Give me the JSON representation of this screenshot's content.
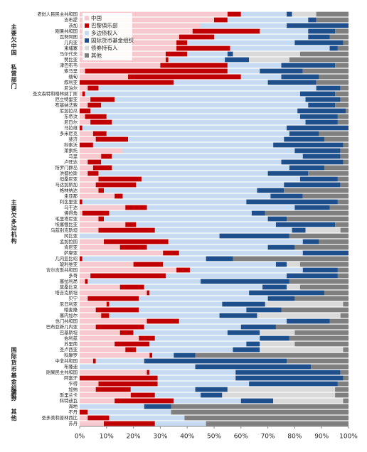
{
  "chart_data": {
    "type": "bar",
    "orientation": "horizontal",
    "stacked": true,
    "categories": [
      "老挝人民民主共和国",
      "吉布提",
      "汤加",
      "刚果共和国",
      "瓦努阿图",
      "几内亚",
      "柬埔寨",
      "马尔代夫",
      "赞比亚",
      "津巴布韦",
      "索马里",
      "缅甸",
      "叙利亚",
      "尼泊尔",
      "圣文森特和格林纳丁斯",
      "厄立特里亚",
      "布基纳法索",
      "尼加拉瓜",
      "东帝汶",
      "尼日尔",
      "马拉维",
      "多米尼克",
      "斐济",
      "科索沃",
      "莱索托",
      "马里",
      "卢旺达",
      "所罗门群岛",
      "洪都拉斯",
      "坦桑尼亚",
      "马达加斯加",
      "格林纳达",
      "圭亚那",
      "利比里亚",
      "乌干达",
      "佛得角",
      "毛里塔尼亚",
      "埃塞俄比亚",
      "乌兹别克斯坦",
      "冈比亚",
      "孟加拉国",
      "肯尼亚",
      "萨摩亚",
      "几内亚比绍",
      "玻利维亚",
      "吉尔吉斯共和国",
      "多哥",
      "塞拉利昂",
      "莫桑比克",
      "塔吉克斯坦",
      "贝宁",
      "尼日利亚",
      "喀麦隆",
      "塞内加尔",
      "也门共和国",
      "巴布亚新几内亚",
      "巴基斯坦",
      "伯利兹",
      "苏里南",
      "圣卢西亚",
      "科摩罗",
      "中非共和国",
      "布隆迪",
      "刚果民主共和国",
      "阿富汗",
      "乍得",
      "加纳",
      "斯里兰卡",
      "科特迪瓦",
      "海地",
      "不丹",
      "圣多美和普林西比",
      "苏丹"
    ],
    "group_labels": [
      "主要欠中国",
      "私营部门",
      "主要欠多边机构",
      "国际货币基金组织",
      "债券",
      "其他"
    ],
    "series": [
      {
        "name": "中国",
        "color": "#f8c9cc",
        "values": [
          55,
          50,
          45,
          42,
          37,
          36,
          36,
          32,
          32,
          30,
          2,
          18,
          0,
          3,
          1,
          4,
          3,
          0,
          2,
          4,
          0,
          5,
          6,
          0,
          16,
          8,
          3,
          5,
          3,
          7,
          6,
          7,
          13,
          0,
          17,
          1,
          7,
          17,
          7,
          0,
          9,
          15,
          31,
          0,
          20,
          36,
          4,
          2,
          15,
          25,
          3,
          10,
          6,
          8,
          25,
          6,
          15,
          22,
          13,
          17,
          26,
          5,
          0,
          25,
          0,
          7,
          6,
          19,
          13,
          0,
          0,
          3,
          9
        ]
      },
      {
        "name": "巴黎俱乐部",
        "color": "#c00000",
        "values": [
          5,
          5,
          0,
          25,
          13,
          4,
          20,
          8,
          1,
          25,
          53,
          42,
          35,
          4,
          1,
          9,
          5,
          4,
          8,
          8,
          1,
          5,
          12,
          5,
          0,
          4,
          5,
          7,
          4,
          16,
          15,
          2,
          3,
          1,
          8,
          10,
          2,
          4,
          21,
          0,
          24,
          10,
          6,
          1,
          11,
          5,
          28,
          1,
          9,
          1,
          19,
          1,
          16,
          3,
          12,
          18,
          5,
          6,
          13,
          4,
          1,
          1,
          0,
          1,
          29,
          22,
          13,
          9,
          22,
          0,
          3,
          8,
          19
        ]
      },
      {
        "name": "多边债权人",
        "color": "#c5d9f1",
        "values": [
          17,
          30,
          32,
          18,
          35,
          40,
          37,
          15,
          21,
          20,
          12,
          15,
          35,
          81,
          80,
          71,
          77,
          77,
          72,
          72,
          76,
          68,
          58,
          67,
          64,
          71,
          67,
          66,
          63,
          59,
          55,
          57,
          55,
          61,
          55,
          53,
          61,
          52,
          51,
          52,
          50,
          45,
          46,
          46,
          42,
          42,
          45,
          42,
          44,
          37,
          48,
          42,
          40,
          41,
          40,
          36,
          35,
          39,
          36,
          36,
          8,
          18,
          43,
          32,
          29,
          34,
          24,
          17,
          25,
          24,
          31,
          28,
          19
        ]
      },
      {
        "name": "国际货币基金组织",
        "color": "#1f4e8c",
        "values": [
          2,
          3,
          23,
          10,
          8,
          18,
          3,
          2,
          9,
          20,
          16,
          14,
          18,
          9,
          13,
          13,
          10,
          18,
          14,
          12,
          23,
          11,
          15,
          26,
          17,
          14,
          23,
          13,
          15,
          14,
          21,
          10,
          12,
          34,
          13,
          5,
          7,
          22,
          5,
          26,
          6,
          10,
          17,
          10,
          4,
          13,
          19,
          33,
          9,
          28,
          10,
          16,
          13,
          14,
          16,
          13,
          12,
          11,
          5,
          10,
          8,
          53,
          43,
          39,
          40,
          33,
          12,
          8,
          12,
          10,
          0,
          0,
          0
        ]
      },
      {
        "name": "债券持有人",
        "color": "#d9d9d9",
        "values": [
          9,
          0,
          0,
          0,
          0,
          0,
          0,
          25,
          15,
          0,
          0,
          0,
          0,
          0,
          0,
          0,
          0,
          0,
          0,
          0,
          0,
          0,
          0,
          0,
          0,
          0,
          0,
          0,
          0,
          0,
          0,
          0,
          0,
          0,
          0,
          0,
          0,
          0,
          13,
          0,
          0,
          0,
          0,
          0,
          5,
          0,
          0,
          0,
          5,
          0,
          0,
          29,
          0,
          31,
          0,
          0,
          13,
          0,
          13,
          31,
          0,
          0,
          0,
          0,
          0,
          0,
          40,
          42,
          26,
          0,
          0,
          0,
          0
        ]
      },
      {
        "name": "其他",
        "color": "#7f7f7f",
        "values": [
          12,
          12,
          0,
          5,
          7,
          2,
          4,
          18,
          22,
          5,
          17,
          11,
          12,
          3,
          5,
          3,
          5,
          1,
          4,
          4,
          0,
          11,
          9,
          2,
          3,
          3,
          2,
          9,
          15,
          4,
          3,
          24,
          17,
          4,
          7,
          31,
          23,
          5,
          3,
          22,
          11,
          20,
          0,
          43,
          18,
          4,
          4,
          22,
          18,
          9,
          20,
          2,
          25,
          3,
          7,
          27,
          20,
          22,
          20,
          2,
          57,
          23,
          14,
          3,
          2,
          4,
          5,
          5,
          2,
          66,
          66,
          61,
          53
        ]
      }
    ],
    "xlim": [
      0,
      100
    ],
    "xticks": [
      {
        "value": 0,
        "label": "0%"
      },
      {
        "value": 10,
        "label": "10%"
      },
      {
        "value": 20,
        "label": "20%"
      },
      {
        "value": 30,
        "label": "30%"
      },
      {
        "value": 40,
        "label": "40%"
      },
      {
        "value": 50,
        "label": "50%"
      },
      {
        "value": 60,
        "label": "60%"
      },
      {
        "value": 70,
        "label": "70%"
      },
      {
        "value": 80,
        "label": "80%"
      },
      {
        "value": 90,
        "label": "90%"
      },
      {
        "value": 100,
        "label": "100%"
      }
    ],
    "legend": "upper left"
  }
}
